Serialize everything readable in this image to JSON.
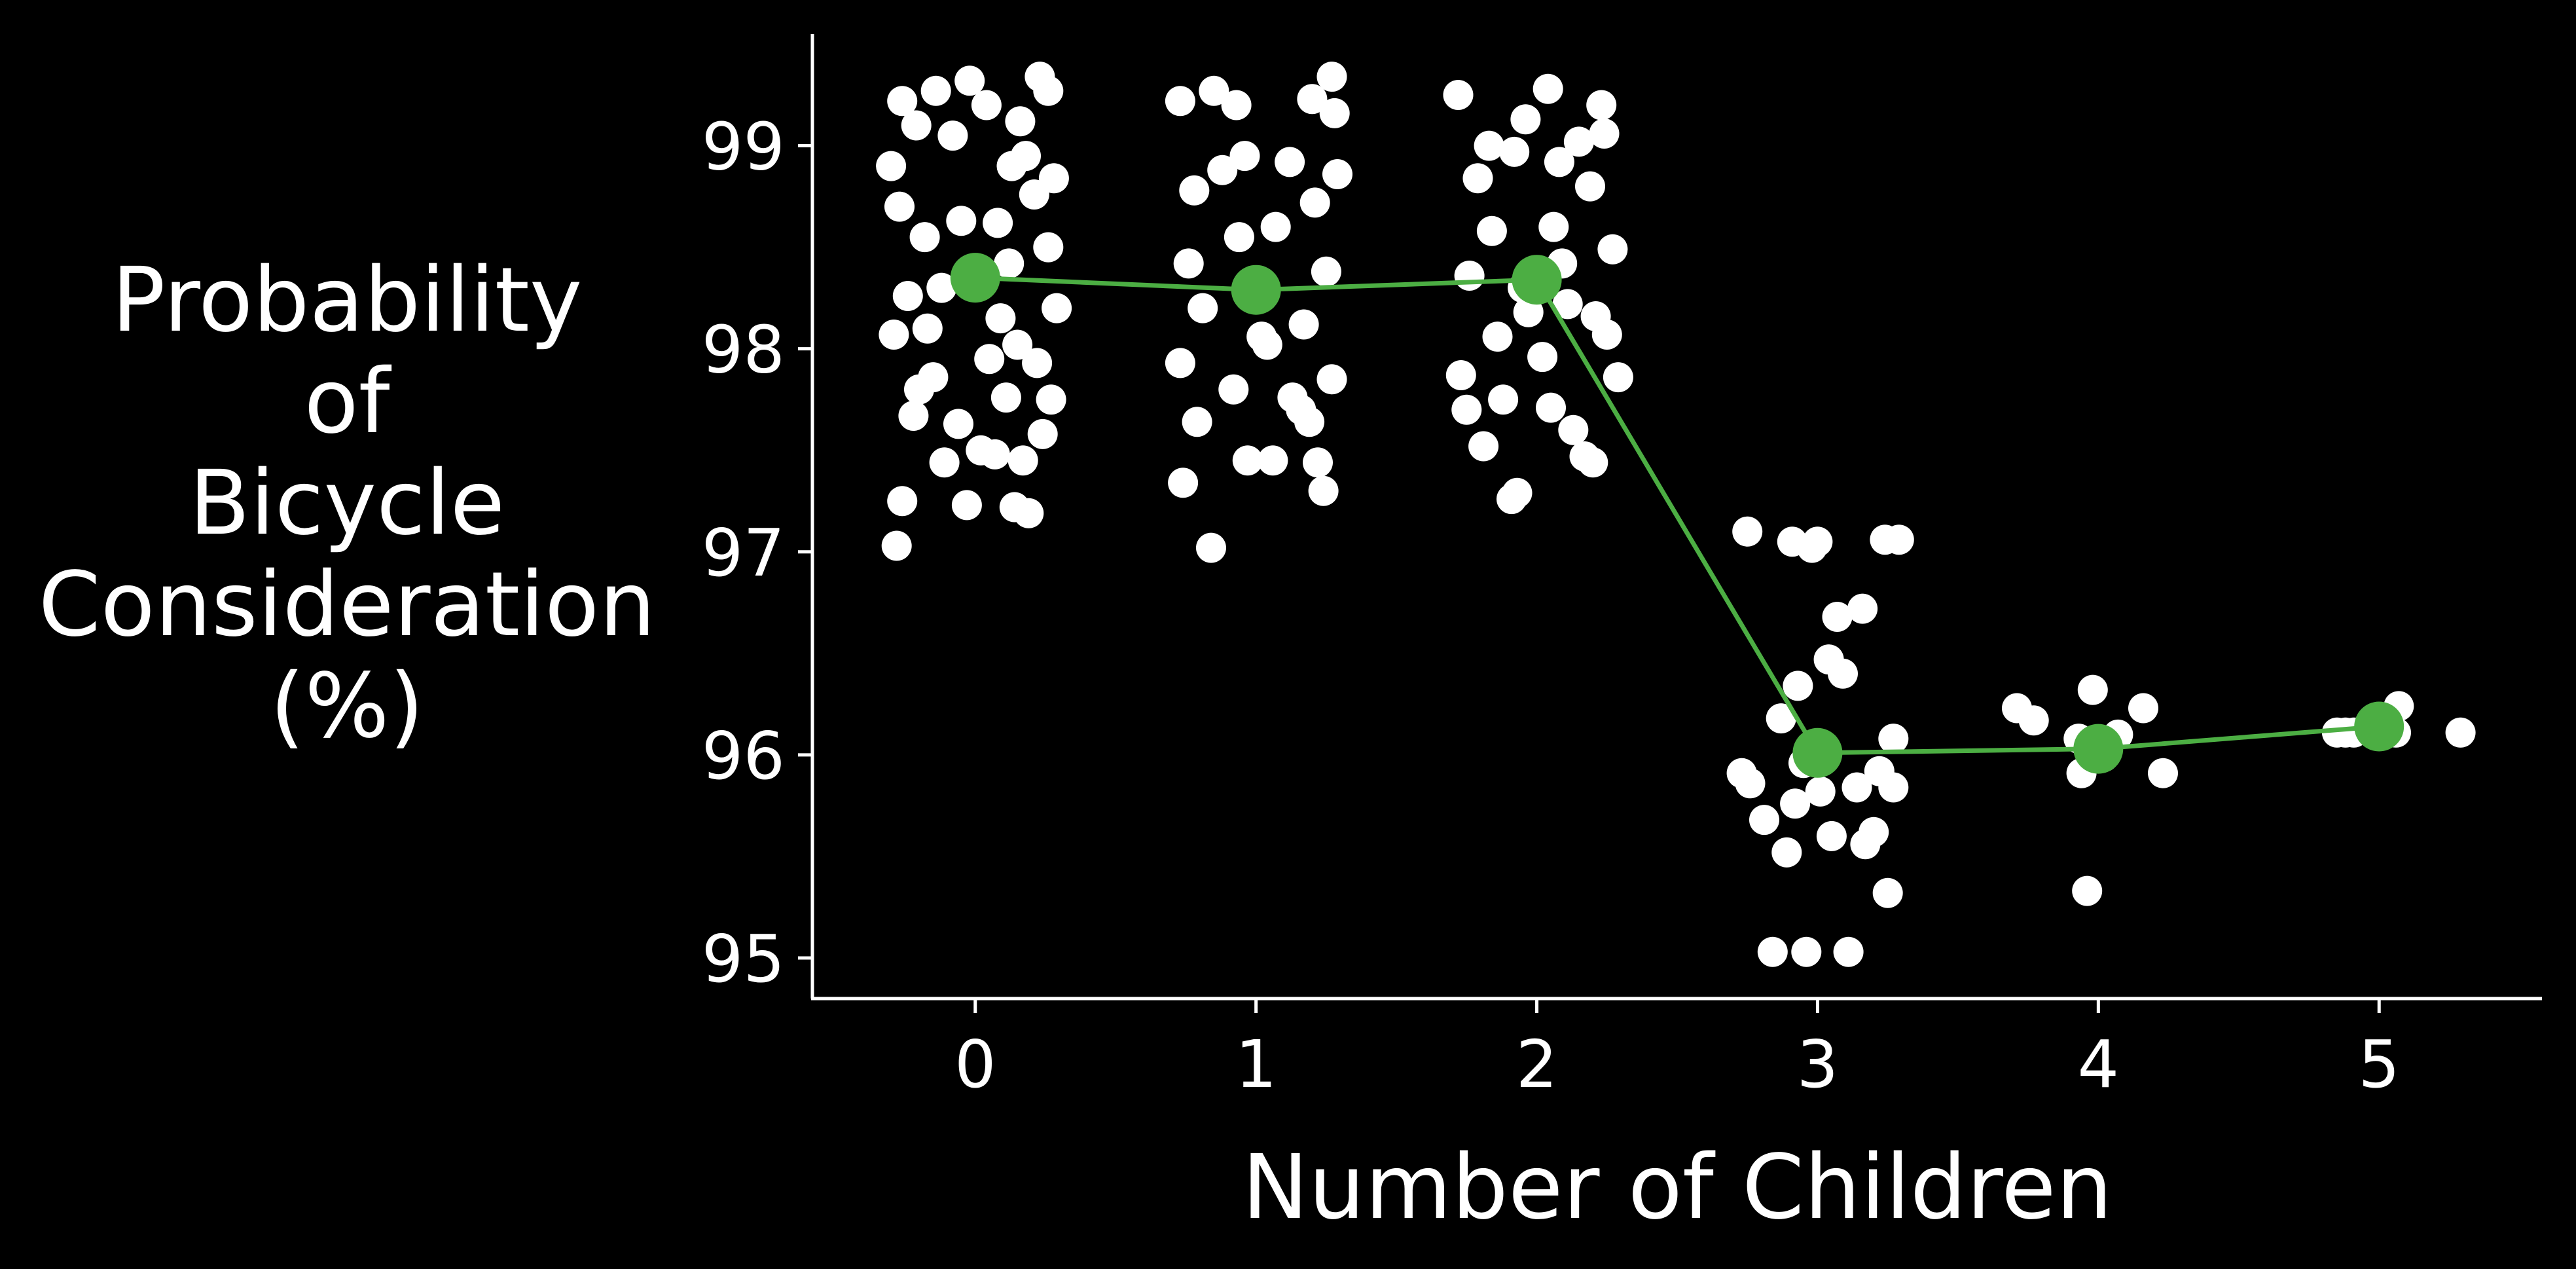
{
  "chart_data": {
    "type": "scatter",
    "title": "",
    "xlabel": "Number of Children",
    "ylabel_lines": [
      "Probability",
      "of",
      "Bicycle",
      "Consideration",
      "(%)"
    ],
    "xlim": [
      -0.58,
      5.58
    ],
    "ylim": [
      94.8,
      99.55
    ],
    "x_ticks": [
      0,
      1,
      2,
      3,
      4,
      5
    ],
    "x_tick_labels": [
      "0",
      "1",
      "2",
      "3",
      "4",
      "5"
    ],
    "y_ticks": [
      95,
      96,
      97,
      98,
      99
    ],
    "y_tick_labels": [
      "95",
      "96",
      "97",
      "98",
      "99"
    ],
    "grid": false,
    "legend": "none",
    "colors": {
      "background": "#000000",
      "axes": "#ffffff",
      "points": "#ffffff",
      "mean_line": "#4cae43"
    },
    "mean_series": {
      "x": [
        0,
        1,
        2,
        3,
        4,
        5
      ],
      "y": [
        98.35,
        98.29,
        98.34,
        96.01,
        96.03,
        96.14
      ]
    },
    "point_groups": [
      {
        "category": 0,
        "points": [
          [
            -0.28,
            97.03
          ],
          [
            -0.26,
            97.25
          ],
          [
            -0.03,
            97.23
          ],
          [
            0.14,
            97.22
          ],
          [
            0.19,
            97.19
          ],
          [
            -0.11,
            97.44
          ],
          [
            0.07,
            97.48
          ],
          [
            0.17,
            97.45
          ],
          [
            0.02,
            97.5
          ],
          [
            -0.22,
            97.67
          ],
          [
            0.24,
            97.58
          ],
          [
            -0.2,
            97.8
          ],
          [
            0.11,
            97.76
          ],
          [
            0.27,
            97.75
          ],
          [
            -0.29,
            98.07
          ],
          [
            -0.15,
            97.86
          ],
          [
            0.05,
            97.95
          ],
          [
            0.22,
            97.93
          ],
          [
            -0.24,
            98.26
          ],
          [
            0.29,
            98.2
          ],
          [
            0.09,
            98.15
          ],
          [
            -0.18,
            98.55
          ],
          [
            0.26,
            98.5
          ],
          [
            0.12,
            98.42
          ],
          [
            -0.27,
            98.7
          ],
          [
            -0.05,
            98.63
          ],
          [
            0.21,
            98.76
          ],
          [
            -0.3,
            98.9
          ],
          [
            0.18,
            98.95
          ],
          [
            0.28,
            98.84
          ],
          [
            -0.08,
            99.05
          ],
          [
            -0.26,
            99.22
          ],
          [
            -0.02,
            99.32
          ],
          [
            -0.14,
            99.27
          ],
          [
            0.23,
            99.34
          ],
          [
            0.26,
            99.27
          ],
          [
            0.04,
            99.2
          ],
          [
            0.16,
            99.12
          ],
          [
            -0.21,
            99.1
          ],
          [
            0.13,
            98.9
          ],
          [
            -0.12,
            98.3
          ],
          [
            0.08,
            98.62
          ],
          [
            -0.17,
            98.1
          ],
          [
            0.15,
            98.02
          ],
          [
            -0.06,
            97.63
          ]
        ]
      },
      {
        "category": 1,
        "points": [
          [
            0.84,
            97.02
          ],
          [
            0.74,
            97.34
          ],
          [
            0.97,
            97.45
          ],
          [
            1.06,
            97.45
          ],
          [
            1.24,
            97.3
          ],
          [
            1.22,
            97.44
          ],
          [
            0.79,
            97.64
          ],
          [
            1.19,
            97.64
          ],
          [
            0.92,
            97.8
          ],
          [
            1.13,
            97.76
          ],
          [
            0.73,
            97.93
          ],
          [
            1.27,
            97.85
          ],
          [
            1.02,
            98.06
          ],
          [
            0.81,
            98.2
          ],
          [
            1.17,
            98.12
          ],
          [
            0.76,
            98.42
          ],
          [
            1.25,
            98.38
          ],
          [
            0.94,
            98.55
          ],
          [
            1.07,
            98.6
          ],
          [
            0.78,
            98.78
          ],
          [
            1.21,
            98.72
          ],
          [
            0.88,
            98.88
          ],
          [
            1.29,
            98.86
          ],
          [
            0.96,
            98.95
          ],
          [
            1.12,
            98.92
          ],
          [
            0.73,
            99.22
          ],
          [
            0.85,
            99.27
          ],
          [
            0.93,
            99.2
          ],
          [
            1.2,
            99.23
          ],
          [
            1.27,
            99.34
          ],
          [
            1.28,
            99.16
          ],
          [
            1.04,
            98.02
          ],
          [
            1.16,
            97.7
          ],
          [
            0.99,
            98.26
          ]
        ]
      },
      {
        "category": 2,
        "points": [
          [
            1.75,
            97.7
          ],
          [
            1.81,
            97.52
          ],
          [
            1.91,
            97.26
          ],
          [
            1.93,
            97.29
          ],
          [
            2.17,
            97.47
          ],
          [
            2.2,
            97.44
          ],
          [
            2.13,
            97.6
          ],
          [
            1.88,
            97.75
          ],
          [
            2.05,
            97.71
          ],
          [
            2.29,
            97.86
          ],
          [
            1.73,
            97.87
          ],
          [
            2.02,
            97.96
          ],
          [
            1.86,
            98.06
          ],
          [
            2.25,
            98.07
          ],
          [
            1.97,
            98.18
          ],
          [
            2.11,
            98.22
          ],
          [
            1.76,
            98.36
          ],
          [
            2.27,
            98.49
          ],
          [
            1.84,
            98.58
          ],
          [
            2.06,
            98.6
          ],
          [
            1.79,
            98.84
          ],
          [
            2.19,
            98.8
          ],
          [
            1.92,
            98.97
          ],
          [
            2.08,
            98.92
          ],
          [
            2.24,
            99.06
          ],
          [
            1.72,
            99.25
          ],
          [
            2.04,
            99.28
          ],
          [
            2.23,
            99.2
          ],
          [
            1.96,
            99.13
          ],
          [
            2.15,
            99.02
          ],
          [
            1.83,
            99.0
          ],
          [
            2.09,
            98.42
          ],
          [
            1.95,
            98.3
          ],
          [
            2.21,
            98.16
          ]
        ]
      },
      {
        "category": 3,
        "points": [
          [
            2.84,
            95.03
          ],
          [
            2.96,
            95.03
          ],
          [
            3.11,
            95.03
          ],
          [
            2.89,
            95.52
          ],
          [
            3.05,
            95.6
          ],
          [
            3.17,
            95.56
          ],
          [
            3.25,
            95.32
          ],
          [
            2.81,
            95.68
          ],
          [
            2.92,
            95.76
          ],
          [
            3.2,
            95.62
          ],
          [
            2.76,
            95.86
          ],
          [
            3.01,
            95.82
          ],
          [
            3.14,
            95.84
          ],
          [
            3.27,
            95.84
          ],
          [
            2.73,
            95.91
          ],
          [
            2.95,
            95.96
          ],
          [
            3.22,
            95.92
          ],
          [
            2.87,
            96.18
          ],
          [
            3.27,
            96.08
          ],
          [
            3.09,
            96.4
          ],
          [
            2.93,
            96.34
          ],
          [
            3.04,
            96.47
          ],
          [
            3.16,
            96.72
          ],
          [
            3.07,
            96.68
          ],
          [
            2.75,
            97.1
          ],
          [
            2.91,
            97.05
          ],
          [
            3.0,
            97.05
          ],
          [
            3.24,
            97.06
          ],
          [
            3.29,
            97.06
          ],
          [
            2.98,
            97.02
          ]
        ]
      },
      {
        "category": 4,
        "points": [
          [
            3.96,
            95.33
          ],
          [
            3.71,
            96.23
          ],
          [
            3.77,
            96.17
          ],
          [
            3.98,
            96.32
          ],
          [
            4.16,
            96.23
          ],
          [
            4.07,
            96.1
          ],
          [
            3.93,
            96.08
          ],
          [
            3.94,
            95.91
          ],
          [
            4.23,
            95.91
          ],
          [
            4.02,
            95.99
          ]
        ]
      },
      {
        "category": 5,
        "points": [
          [
            4.85,
            96.11
          ],
          [
            4.88,
            96.11
          ],
          [
            4.91,
            96.11
          ],
          [
            5.07,
            96.24
          ],
          [
            5.06,
            96.11
          ],
          [
            5.29,
            96.11
          ]
        ]
      }
    ]
  }
}
